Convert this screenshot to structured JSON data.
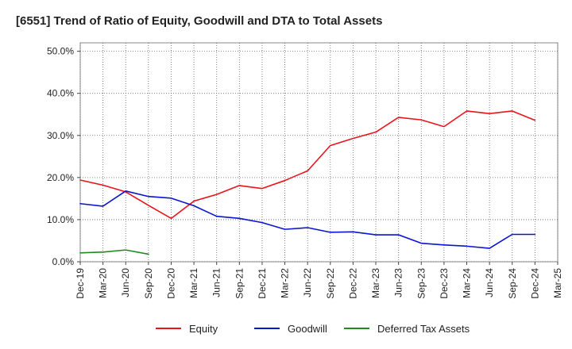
{
  "chart_data": {
    "type": "line",
    "title": "[6551]  Trend of Ratio of Equity, Goodwill and DTA to Total Assets",
    "xlabel": "",
    "ylabel": "",
    "ylim": [
      0,
      52
    ],
    "y_ticks": [
      "0.0%",
      "10.0%",
      "20.0%",
      "30.0%",
      "40.0%",
      "50.0%"
    ],
    "y_tick_values": [
      0,
      10,
      20,
      30,
      40,
      50
    ],
    "x_ticks": [
      "Dec-19",
      "Mar-20",
      "Jun-20",
      "Sep-20",
      "Dec-20",
      "Mar-21",
      "Jun-21",
      "Sep-21",
      "Dec-21",
      "Mar-22",
      "Jun-22",
      "Sep-22",
      "Dec-22",
      "Mar-23",
      "Jun-23",
      "Sep-23",
      "Dec-23",
      "Mar-24",
      "Jun-24",
      "Sep-24",
      "Dec-24",
      "Mar-25"
    ],
    "grid": true,
    "legend_position": "bottom",
    "series": [
      {
        "name": "Equity",
        "color": "#e8141c",
        "values": [
          19.4,
          18.2,
          16.6,
          13.4,
          10.3,
          14.4,
          16.0,
          18.1,
          17.4,
          19.3,
          21.6,
          27.6,
          29.3,
          30.8,
          34.3,
          33.7,
          32.1,
          35.8,
          35.2,
          35.8,
          33.6,
          null
        ]
      },
      {
        "name": "Goodwill",
        "color": "#0a14d2",
        "values": [
          13.8,
          13.2,
          16.8,
          15.5,
          15.1,
          13.3,
          10.8,
          10.3,
          9.3,
          7.7,
          8.1,
          7.0,
          7.1,
          6.4,
          6.4,
          4.4,
          4.0,
          3.7,
          3.2,
          6.5,
          6.5,
          null
        ]
      },
      {
        "name": "Deferred Tax Assets",
        "color": "#1f8c1f",
        "values": [
          2.1,
          2.3,
          2.8,
          1.8,
          null,
          null,
          null,
          null,
          null,
          null,
          null,
          null,
          null,
          null,
          null,
          null,
          null,
          null,
          null,
          null,
          null,
          null
        ]
      }
    ]
  }
}
